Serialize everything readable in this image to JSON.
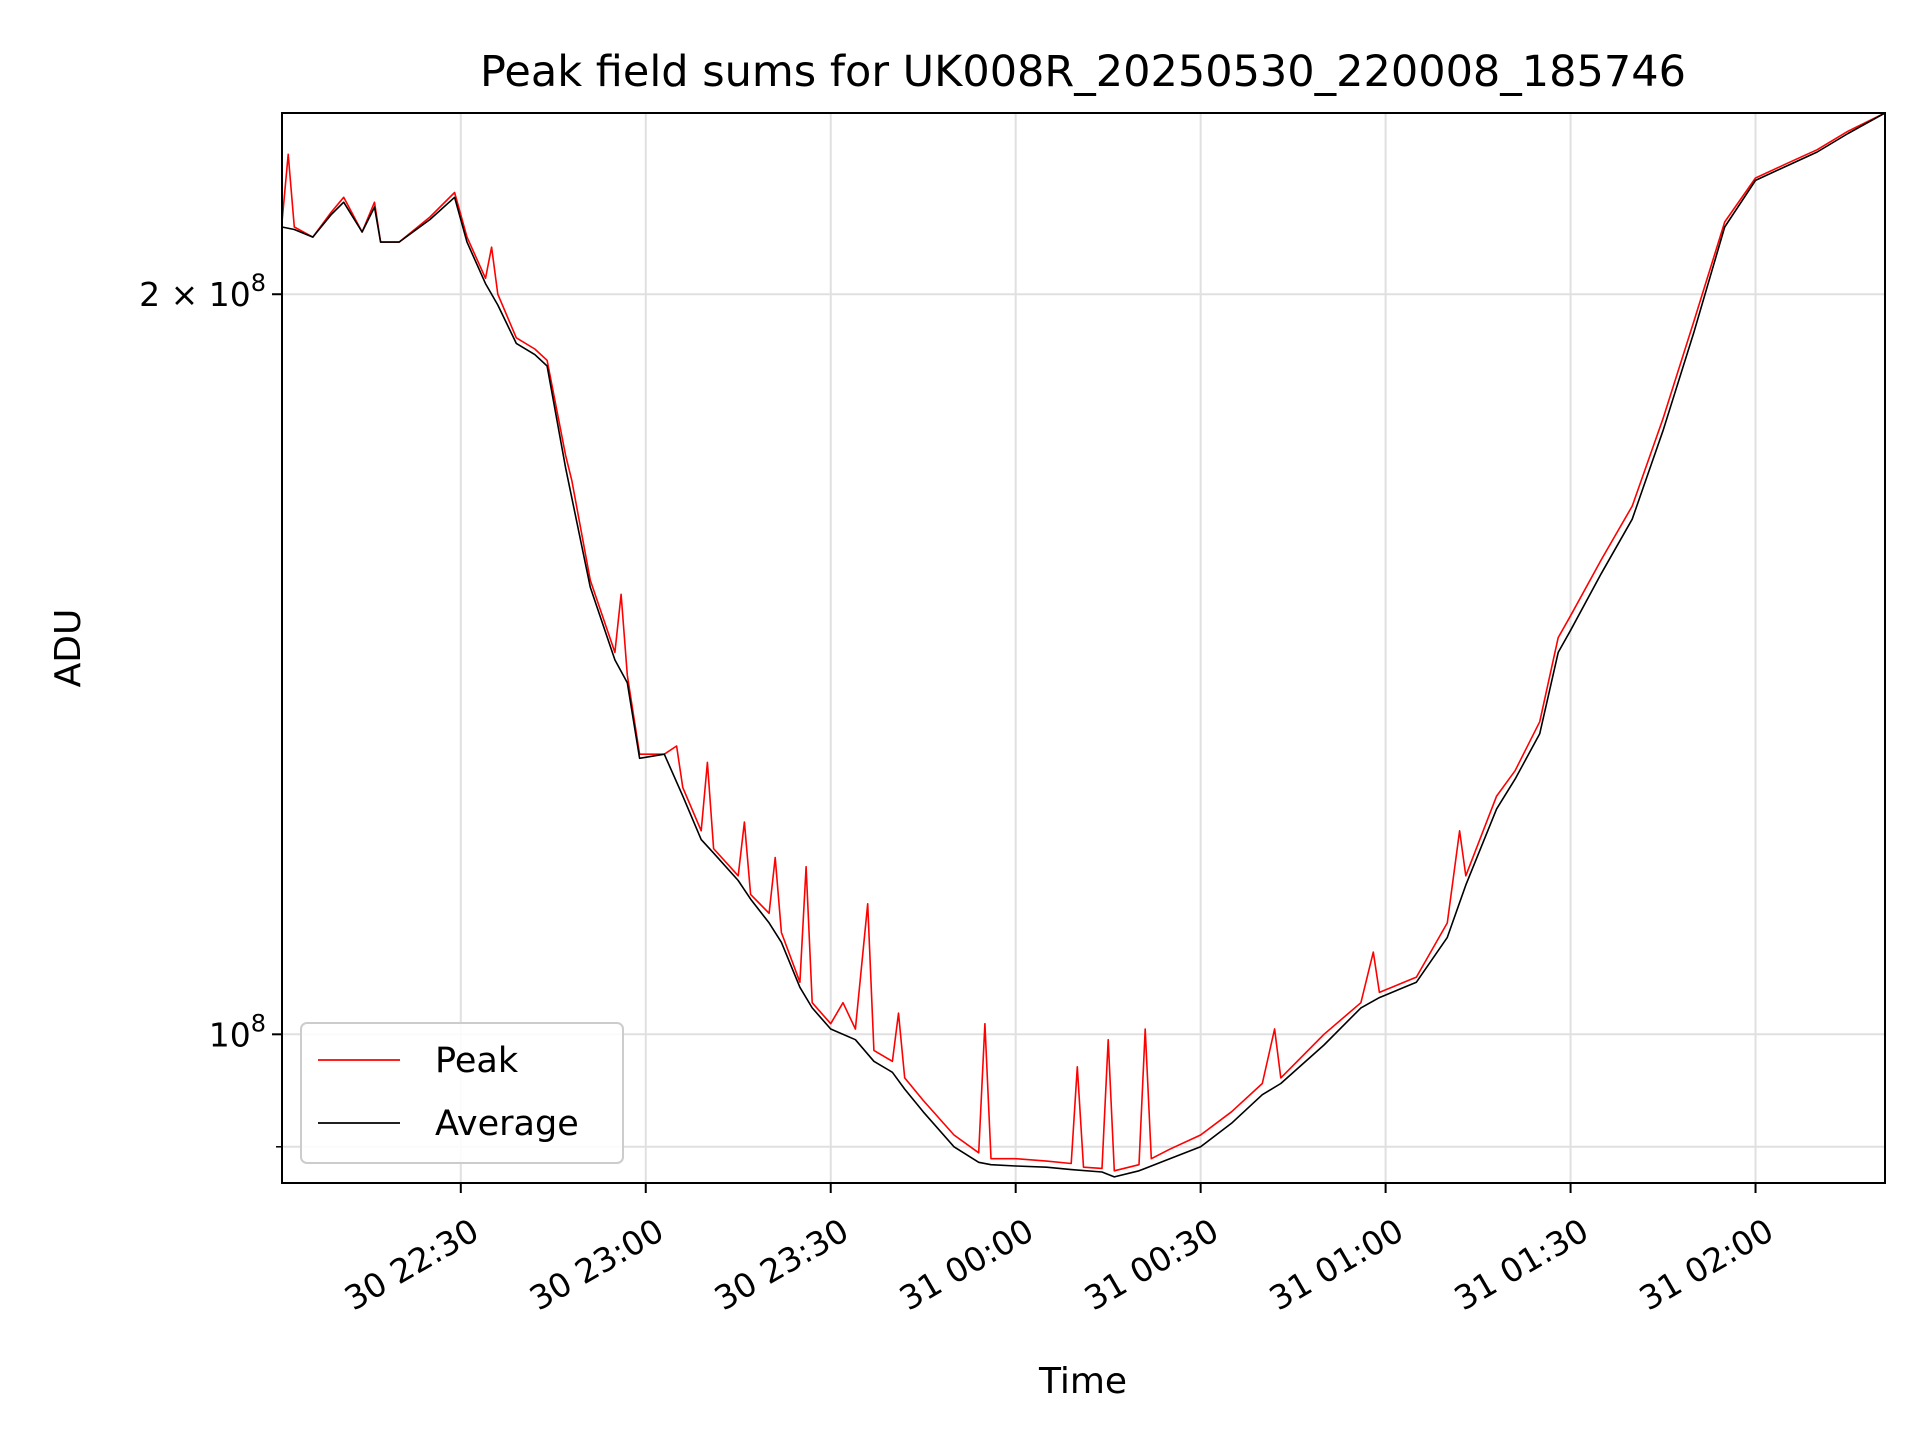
{
  "chart_data": {
    "type": "line",
    "title": "Peak field sums for UK008R_20250530_220008_185746",
    "xlabel": "Time",
    "ylabel": "ADU",
    "y_scale": "log",
    "ylim": [
      87000000,
      237000000
    ],
    "xlim": [
      "2025-05-30 22:01",
      "2025-05-31 02:21"
    ],
    "grid": true,
    "legend": "lower-left",
    "x_ticks": [
      {
        "t": "2025-05-30 22:30",
        "label": "30 22:30"
      },
      {
        "t": "2025-05-30 23:00",
        "label": "30 23:00"
      },
      {
        "t": "2025-05-30 23:30",
        "label": "30 23:30"
      },
      {
        "t": "2025-05-31 00:00",
        "label": "31 00:00"
      },
      {
        "t": "2025-05-31 00:30",
        "label": "31 00:30"
      },
      {
        "t": "2025-05-31 01:00",
        "label": "31 01:00"
      },
      {
        "t": "2025-05-31 01:30",
        "label": "31 01:30"
      },
      {
        "t": "2025-05-31 02:00",
        "label": "31 02:00"
      }
    ],
    "y_ticks": [
      {
        "value": 100000000,
        "label": "10",
        "sup": "8"
      },
      {
        "value": 200000000,
        "label": "2 × 10",
        "sup": "8"
      }
    ],
    "series": [
      {
        "name": "Peak",
        "color": "#ff0000",
        "points": [
          [
            "2025-05-30 22:01",
            214000000
          ],
          [
            "2025-05-30 22:02",
            228000000
          ],
          [
            "2025-05-30 22:03",
            213000000
          ],
          [
            "2025-05-30 22:06",
            211000000
          ],
          [
            "2025-05-30 22:09",
            216000000
          ],
          [
            "2025-05-30 22:11",
            219000000
          ],
          [
            "2025-05-30 22:14",
            212000000
          ],
          [
            "2025-05-30 22:16",
            218000000
          ],
          [
            "2025-05-30 22:17",
            210000000
          ],
          [
            "2025-05-30 22:20",
            210000000
          ],
          [
            "2025-05-30 22:25",
            215000000
          ],
          [
            "2025-05-30 22:29",
            220000000
          ],
          [
            "2025-05-30 22:31",
            211000000
          ],
          [
            "2025-05-30 22:34",
            203000000
          ],
          [
            "2025-05-30 22:35",
            209000000
          ],
          [
            "2025-05-30 22:36",
            200000000
          ],
          [
            "2025-05-30 22:39",
            192000000
          ],
          [
            "2025-05-30 22:42",
            190000000
          ],
          [
            "2025-05-30 22:44",
            188000000
          ],
          [
            "2025-05-30 22:47",
            172000000
          ],
          [
            "2025-05-30 22:48",
            168000000
          ],
          [
            "2025-05-30 22:51",
            153000000
          ],
          [
            "2025-05-30 22:55",
            143000000
          ],
          [
            "2025-05-30 22:56",
            151000000
          ],
          [
            "2025-05-30 22:57",
            140000000
          ],
          [
            "2025-05-30 22:59",
            130000000
          ],
          [
            "2025-05-30 23:03",
            130000000
          ],
          [
            "2025-05-30 23:05",
            131000000
          ],
          [
            "2025-05-30 23:06",
            126000000
          ],
          [
            "2025-05-30 23:09",
            121000000
          ],
          [
            "2025-05-30 23:10",
            129000000
          ],
          [
            "2025-05-30 23:11",
            119000000
          ],
          [
            "2025-05-30 23:15",
            116000000
          ],
          [
            "2025-05-30 23:16",
            122000000
          ],
          [
            "2025-05-30 23:17",
            114000000
          ],
          [
            "2025-05-30 23:20",
            112000000
          ],
          [
            "2025-05-30 23:21",
            118000000
          ],
          [
            "2025-05-30 23:22",
            110000000
          ],
          [
            "2025-05-30 23:25",
            105000000
          ],
          [
            "2025-05-30 23:26",
            117000000
          ],
          [
            "2025-05-30 23:27",
            103000000
          ],
          [
            "2025-05-30 23:30",
            101000000
          ],
          [
            "2025-05-30 23:32",
            103000000
          ],
          [
            "2025-05-30 23:34",
            100500000
          ],
          [
            "2025-05-30 23:36",
            113000000
          ],
          [
            "2025-05-30 23:37",
            98500000
          ],
          [
            "2025-05-30 23:40",
            97500000
          ],
          [
            "2025-05-30 23:41",
            102000000
          ],
          [
            "2025-05-30 23:42",
            96000000
          ],
          [
            "2025-05-30 23:45",
            94000000
          ],
          [
            "2025-05-30 23:50",
            91000000
          ],
          [
            "2025-05-30 23:54",
            89500000
          ],
          [
            "2025-05-30 23:55",
            101000000
          ],
          [
            "2025-05-30 23:56",
            89000000
          ],
          [
            "2025-05-31 00:00",
            89000000
          ],
          [
            "2025-05-31 00:05",
            88800000
          ],
          [
            "2025-05-31 00:09",
            88600000
          ],
          [
            "2025-05-31 00:10",
            97000000
          ],
          [
            "2025-05-31 00:11",
            88300000
          ],
          [
            "2025-05-31 00:14",
            88200000
          ],
          [
            "2025-05-31 00:15",
            99500000
          ],
          [
            "2025-05-31 00:16",
            88000000
          ],
          [
            "2025-05-31 00:20",
            88500000
          ],
          [
            "2025-05-31 00:21",
            100500000
          ],
          [
            "2025-05-31 00:22",
            89000000
          ],
          [
            "2025-05-31 00:25",
            89800000
          ],
          [
            "2025-05-31 00:30",
            91000000
          ],
          [
            "2025-05-31 00:35",
            93000000
          ],
          [
            "2025-05-31 00:40",
            95500000
          ],
          [
            "2025-05-31 00:42",
            100500000
          ],
          [
            "2025-05-31 00:43",
            96000000
          ],
          [
            "2025-05-31 00:50",
            100000000
          ],
          [
            "2025-05-31 00:56",
            103000000
          ],
          [
            "2025-05-31 00:58",
            108000000
          ],
          [
            "2025-05-31 00:59",
            104000000
          ],
          [
            "2025-05-31 01:05",
            105500000
          ],
          [
            "2025-05-31 01:10",
            111000000
          ],
          [
            "2025-05-31 01:12",
            121000000
          ],
          [
            "2025-05-31 01:13",
            116000000
          ],
          [
            "2025-05-31 01:18",
            125000000
          ],
          [
            "2025-05-31 01:21",
            128000000
          ],
          [
            "2025-05-31 01:25",
            134000000
          ],
          [
            "2025-05-31 01:28",
            145000000
          ],
          [
            "2025-05-31 01:30",
            148000000
          ],
          [
            "2025-05-31 01:35",
            156000000
          ],
          [
            "2025-05-31 01:40",
            164000000
          ],
          [
            "2025-05-31 01:45",
            178000000
          ],
          [
            "2025-05-31 01:50",
            195000000
          ],
          [
            "2025-05-31 01:55",
            214000000
          ],
          [
            "2025-05-31 02:00",
            223000000
          ],
          [
            "2025-05-31 02:05",
            226000000
          ],
          [
            "2025-05-31 02:10",
            229000000
          ],
          [
            "2025-05-31 02:15",
            233000000
          ],
          [
            "2025-05-31 02:21",
            237000000
          ]
        ]
      },
      {
        "name": "Average",
        "color": "#000000",
        "points": [
          [
            "2025-05-30 22:01",
            213000000
          ],
          [
            "2025-05-30 22:03",
            212500000
          ],
          [
            "2025-05-30 22:06",
            211000000
          ],
          [
            "2025-05-30 22:09",
            215500000
          ],
          [
            "2025-05-30 22:11",
            218000000
          ],
          [
            "2025-05-30 22:14",
            212000000
          ],
          [
            "2025-05-30 22:16",
            217000000
          ],
          [
            "2025-05-30 22:17",
            210000000
          ],
          [
            "2025-05-30 22:20",
            210000000
          ],
          [
            "2025-05-30 22:25",
            214500000
          ],
          [
            "2025-05-30 22:29",
            219000000
          ],
          [
            "2025-05-30 22:31",
            210000000
          ],
          [
            "2025-05-30 22:34",
            202000000
          ],
          [
            "2025-05-30 22:36",
            198000000
          ],
          [
            "2025-05-30 22:39",
            191000000
          ],
          [
            "2025-05-30 22:42",
            189000000
          ],
          [
            "2025-05-30 22:44",
            187000000
          ],
          [
            "2025-05-30 22:47",
            170000000
          ],
          [
            "2025-05-30 22:51",
            152000000
          ],
          [
            "2025-05-30 22:55",
            142000000
          ],
          [
            "2025-05-30 22:57",
            139000000
          ],
          [
            "2025-05-30 22:59",
            129500000
          ],
          [
            "2025-05-30 23:03",
            130000000
          ],
          [
            "2025-05-30 23:06",
            125000000
          ],
          [
            "2025-05-30 23:09",
            120000000
          ],
          [
            "2025-05-30 23:11",
            118500000
          ],
          [
            "2025-05-30 23:15",
            115500000
          ],
          [
            "2025-05-30 23:17",
            113500000
          ],
          [
            "2025-05-30 23:20",
            111000000
          ],
          [
            "2025-05-30 23:22",
            109000000
          ],
          [
            "2025-05-30 23:25",
            104500000
          ],
          [
            "2025-05-30 23:27",
            102500000
          ],
          [
            "2025-05-30 23:30",
            100500000
          ],
          [
            "2025-05-30 23:34",
            99500000
          ],
          [
            "2025-05-30 23:37",
            97500000
          ],
          [
            "2025-05-30 23:40",
            96500000
          ],
          [
            "2025-05-30 23:42",
            95000000
          ],
          [
            "2025-05-30 23:45",
            93000000
          ],
          [
            "2025-05-30 23:50",
            90000000
          ],
          [
            "2025-05-30 23:54",
            88700000
          ],
          [
            "2025-05-30 23:56",
            88500000
          ],
          [
            "2025-05-31 00:00",
            88400000
          ],
          [
            "2025-05-31 00:05",
            88300000
          ],
          [
            "2025-05-31 00:09",
            88100000
          ],
          [
            "2025-05-31 00:14",
            87900000
          ],
          [
            "2025-05-31 00:16",
            87500000
          ],
          [
            "2025-05-31 00:20",
            88000000
          ],
          [
            "2025-05-31 00:25",
            89000000
          ],
          [
            "2025-05-31 00:30",
            90000000
          ],
          [
            "2025-05-31 00:35",
            92000000
          ],
          [
            "2025-05-31 00:40",
            94500000
          ],
          [
            "2025-05-31 00:43",
            95500000
          ],
          [
            "2025-05-31 00:50",
            99000000
          ],
          [
            "2025-05-31 00:56",
            102500000
          ],
          [
            "2025-05-31 00:59",
            103500000
          ],
          [
            "2025-05-31 01:05",
            105000000
          ],
          [
            "2025-05-31 01:10",
            109500000
          ],
          [
            "2025-05-31 01:13",
            115000000
          ],
          [
            "2025-05-31 01:18",
            123500000
          ],
          [
            "2025-05-31 01:21",
            127000000
          ],
          [
            "2025-05-31 01:25",
            132500000
          ],
          [
            "2025-05-31 01:28",
            143000000
          ],
          [
            "2025-05-31 01:30",
            146000000
          ],
          [
            "2025-05-31 01:35",
            154000000
          ],
          [
            "2025-05-31 01:40",
            162000000
          ],
          [
            "2025-05-31 01:45",
            176000000
          ],
          [
            "2025-05-31 01:50",
            193000000
          ],
          [
            "2025-05-31 01:55",
            213000000
          ],
          [
            "2025-05-31 02:00",
            222500000
          ],
          [
            "2025-05-31 02:05",
            225500000
          ],
          [
            "2025-05-31 02:10",
            228500000
          ],
          [
            "2025-05-31 02:15",
            232500000
          ],
          [
            "2025-05-31 02:21",
            237000000
          ]
        ]
      }
    ]
  }
}
